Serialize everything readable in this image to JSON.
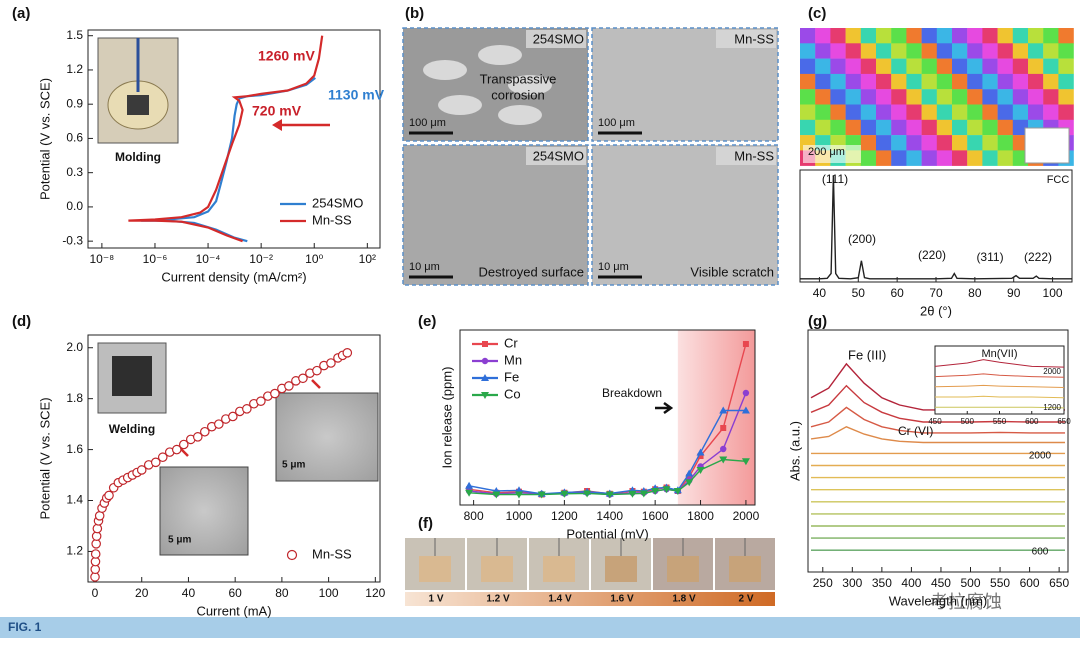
{
  "chart_data": [
    {
      "type": "line",
      "label": "(a)",
      "xlabel": "Current density (mA/cm²)",
      "ylabel": "Potential (V vs. SCE)",
      "xlog": true,
      "xlim": [
        3e-09,
        300
      ],
      "ylim": [
        -0.36,
        1.55
      ],
      "xticks": [
        {
          "value": 1e-08,
          "label": "10⁻⁸"
        },
        {
          "value": 1e-06,
          "label": "10⁻⁶"
        },
        {
          "value": 0.0001,
          "label": "10⁻⁴"
        },
        {
          "value": 0.01,
          "label": "10⁻²"
        },
        {
          "value": 1,
          "label": "10⁰"
        },
        {
          "value": 100,
          "label": "10²"
        }
      ],
      "yticks": [
        -0.3,
        {
          "value": 0,
          "label": "0.0"
        },
        0.3,
        0.6,
        0.9,
        1.2,
        1.5
      ],
      "legend": "lower right",
      "series": [
        {
          "name": "254SMO",
          "color": "#2f7fd0",
          "x": [
            0.003,
            0.001,
            0.0002,
            3e-05,
            3e-06,
            3e-07,
            3e-06,
            3e-05,
            0.0001,
            0.0002,
            0.0003,
            0.0005,
            0.0008,
            0.001,
            0.0012,
            0.0015,
            0.003,
            0.01,
            0.1,
            0.5,
            1.1
          ],
          "values": [
            -0.3,
            -0.27,
            -0.2,
            -0.14,
            -0.12,
            -0.12,
            -0.11,
            -0.09,
            -0.04,
            0.05,
            0.2,
            0.4,
            0.6,
            0.8,
            0.9,
            0.95,
            0.97,
            0.98,
            1.02,
            1.07,
            1.13
          ]
        },
        {
          "name": "Mn-SS",
          "color": "#d42a2a",
          "x": [
            0.002,
            0.0005,
            0.0001,
            1e-05,
            1e-06,
            1e-07,
            1e-06,
            1e-05,
            5e-05,
            0.0001,
            0.0002,
            0.0004,
            0.0008,
            0.0015,
            0.002,
            0.0015,
            0.001,
            0.003,
            0.01,
            0.1,
            0.5,
            1,
            1.5,
            2
          ],
          "values": [
            -0.3,
            -0.25,
            -0.18,
            -0.13,
            -0.12,
            -0.12,
            -0.11,
            -0.09,
            -0.05,
            0,
            0.15,
            0.35,
            0.55,
            0.72,
            0.85,
            0.93,
            0.96,
            0.97,
            0.99,
            1.02,
            1.08,
            1.15,
            1.3,
            1.5
          ]
        }
      ],
      "annotations": [
        {
          "text": "1260 mV",
          "color": "#c8202a"
        },
        {
          "text": "1130 mV",
          "color": "#2f7fd0"
        },
        {
          "text": "720 mV",
          "color": "#c8202a"
        },
        {
          "text": "Molding",
          "color": "#111111"
        }
      ]
    },
    {
      "type": "line",
      "xlabel": "2θ (°)",
      "xlim": [
        35,
        105
      ],
      "ylim": [
        0,
        105
      ],
      "xticks": [
        40,
        50,
        60,
        70,
        80,
        90,
        100
      ],
      "x": [
        35,
        40,
        42,
        43,
        43.6,
        44.2,
        45,
        48,
        50,
        50.8,
        51.6,
        53,
        60,
        70,
        74,
        74.7,
        75.4,
        80,
        89.5,
        90.6,
        91.5,
        95,
        95.8,
        96.5,
        100,
        105
      ],
      "series": [
        {
          "color": "#222222",
          "values": [
            3,
            3,
            3.5,
            8,
            100,
            8,
            3.5,
            3,
            4,
            20,
            4,
            3,
            3,
            3,
            3.5,
            8,
            3.5,
            3,
            3.5,
            6,
            3.5,
            3.5,
            5.5,
            3.5,
            3,
            3
          ]
        }
      ],
      "annotations": [
        {
          "text": "(111)",
          "color": "#111111"
        },
        {
          "text": "(200)",
          "color": "#111111"
        },
        {
          "text": "(220)",
          "color": "#111111"
        },
        {
          "text": "(311)",
          "color": "#111111"
        },
        {
          "text": "(222)",
          "color": "#111111"
        },
        {
          "text": "FCC",
          "color": "#111111"
        }
      ]
    },
    {
      "type": "scatter",
      "label": "(d)",
      "xlabel": "Current (mA)",
      "ylabel": "Potential (V vs. SCE)",
      "xlim": [
        -3,
        122
      ],
      "ylim": [
        1.08,
        2.05
      ],
      "xticks": [
        0,
        20,
        40,
        60,
        80,
        100,
        120
      ],
      "yticks": [
        1.2,
        1.4,
        1.6,
        1.8,
        {
          "value": 2,
          "label": "2.0"
        }
      ],
      "legend": "lower right",
      "series": [
        {
          "name": "Mn-SS",
          "color": "#c0262b",
          "x": [
            0,
            0.1,
            0.2,
            0.3,
            0.5,
            0.7,
            1,
            1.5,
            2,
            3,
            4,
            5,
            6,
            8,
            10,
            12,
            14,
            16,
            18,
            20,
            23,
            26,
            29,
            32,
            35,
            38,
            41,
            44,
            47,
            50,
            53,
            56,
            59,
            62,
            65,
            68,
            71,
            74,
            77,
            80,
            83,
            86,
            89,
            92,
            95,
            98,
            101,
            104,
            106,
            108
          ],
          "values": [
            1.1,
            1.13,
            1.16,
            1.19,
            1.23,
            1.26,
            1.29,
            1.32,
            1.34,
            1.37,
            1.39,
            1.41,
            1.42,
            1.45,
            1.47,
            1.48,
            1.49,
            1.5,
            1.51,
            1.52,
            1.54,
            1.55,
            1.57,
            1.59,
            1.6,
            1.62,
            1.64,
            1.65,
            1.67,
            1.69,
            1.7,
            1.72,
            1.73,
            1.75,
            1.76,
            1.78,
            1.79,
            1.81,
            1.82,
            1.84,
            1.85,
            1.87,
            1.88,
            1.9,
            1.91,
            1.93,
            1.94,
            1.96,
            1.97,
            1.98
          ]
        }
      ],
      "annotations": [
        {
          "text": "Welding",
          "color": "#111111"
        },
        {
          "text": "5 μm",
          "color": "#111111"
        },
        {
          "text": "5 μm",
          "color": "#111111"
        }
      ]
    },
    {
      "type": "line",
      "label": "(e)",
      "xlabel": "Potential (mV)",
      "ylabel": "Ion release (ppm)",
      "xlim": [
        740,
        2040
      ],
      "ylim": [
        -0.3,
        4.7
      ],
      "xticks": [
        800,
        1000,
        1200,
        1400,
        1600,
        1800,
        2000
      ],
      "legend": "upper left",
      "shade_from": 1700,
      "x": [
        780,
        900,
        1000,
        1100,
        1200,
        1300,
        1400,
        1500,
        1550,
        1600,
        1650,
        1700,
        1750,
        1800,
        1900,
        2000
      ],
      "series": [
        {
          "name": "Cr",
          "color": "#e8474f",
          "marker": "square",
          "values": [
            0.15,
            0.05,
            0.08,
            0,
            0.05,
            0.1,
            0.02,
            0.1,
            0.08,
            0.15,
            0.2,
            0.1,
            0.5,
            1.1,
            1.9,
            4.3
          ]
        },
        {
          "name": "Mn",
          "color": "#8b3fd1",
          "marker": "circle",
          "values": [
            0.1,
            0.02,
            0.05,
            0.02,
            0.03,
            0.05,
            0,
            0.05,
            0.05,
            0.1,
            0.15,
            0.1,
            0.4,
            0.8,
            1.3,
            2.9
          ]
        },
        {
          "name": "Fe",
          "color": "#2f6fd9",
          "marker": "triangle",
          "values": [
            0.25,
            0.1,
            0.12,
            0.02,
            0.06,
            0.08,
            0.03,
            0.12,
            0.1,
            0.18,
            0.2,
            0.12,
            0.6,
            1.2,
            2.4,
            2.4
          ]
        },
        {
          "name": "Co",
          "color": "#2aa84a",
          "marker": "down",
          "values": [
            0.05,
            0,
            0,
            0,
            0.02,
            0.03,
            0,
            0.02,
            0.03,
            0.1,
            0.15,
            0.1,
            0.35,
            0.7,
            1,
            0.95
          ]
        }
      ],
      "annotations": [
        {
          "text": "Breakdown",
          "color": "#111111"
        }
      ]
    },
    {
      "type": "line",
      "label": "(g)",
      "xlabel": "Wavelength (nm)",
      "ylabel": "Abs. (a.u.)",
      "xlim": [
        225,
        665
      ],
      "ylim": [
        0,
        10
      ],
      "xticks": [
        250,
        300,
        350,
        400,
        450,
        500,
        550,
        600,
        650
      ],
      "x": [
        230,
        260,
        290,
        320,
        350,
        380,
        420,
        500,
        550,
        600,
        660
      ],
      "series": [
        {
          "color": "#b3243a",
          "values": [
            7.2,
            7.6,
            8.6,
            7.8,
            7.2,
            6.9,
            6.7,
            6.7,
            6.75,
            6.7,
            6.7
          ]
        },
        {
          "color": "#c83a3f",
          "values": [
            6.6,
            6.9,
            7.7,
            7,
            6.6,
            6.35,
            6.2,
            6.2,
            6.22,
            6.2,
            6.2
          ]
        },
        {
          "color": "#d65a45",
          "values": [
            6,
            6.2,
            6.8,
            6.3,
            6,
            5.85,
            5.75,
            5.75,
            5.77,
            5.75,
            5.75
          ]
        },
        {
          "color": "#de8a4a",
          "values": [
            5.5,
            5.6,
            6,
            5.7,
            5.5,
            5.4,
            5.35,
            5.35,
            5.35,
            5.35,
            5.35
          ]
        },
        {
          "color": "#e39c4e",
          "values": [
            4.9,
            4.9,
            4.9,
            4.9,
            4.9,
            4.9,
            4.9,
            4.9,
            4.9,
            4.9,
            4.9
          ]
        },
        {
          "color": "#e4ad52",
          "values": [
            4.4,
            4.4,
            4.4,
            4.4,
            4.4,
            4.4,
            4.4,
            4.4,
            4.4,
            4.4,
            4.4
          ]
        },
        {
          "color": "#e2bb56",
          "values": [
            3.9,
            3.9,
            3.9,
            3.9,
            3.9,
            3.9,
            3.9,
            3.9,
            3.9,
            3.9,
            3.9
          ]
        },
        {
          "color": "#dcc45a",
          "values": [
            3.4,
            3.4,
            3.4,
            3.4,
            3.4,
            3.4,
            3.4,
            3.4,
            3.4,
            3.4,
            3.4
          ]
        },
        {
          "color": "#ccc65c",
          "values": [
            2.9,
            2.9,
            2.9,
            2.9,
            2.9,
            2.9,
            2.9,
            2.9,
            2.9,
            2.9,
            2.9
          ]
        },
        {
          "color": "#b4c25e",
          "values": [
            2.4,
            2.4,
            2.4,
            2.4,
            2.4,
            2.4,
            2.4,
            2.4,
            2.4,
            2.4,
            2.4
          ]
        },
        {
          "color": "#98ba60",
          "values": [
            1.9,
            1.9,
            1.9,
            1.9,
            1.9,
            1.9,
            1.9,
            1.9,
            1.9,
            1.9,
            1.9
          ]
        },
        {
          "color": "#7cb062",
          "values": [
            1.4,
            1.4,
            1.4,
            1.4,
            1.4,
            1.4,
            1.4,
            1.4,
            1.4,
            1.4,
            1.4
          ]
        },
        {
          "color": "#5fa463",
          "values": [
            0.9,
            0.9,
            0.9,
            0.9,
            0.9,
            0.9,
            0.9,
            0.9,
            0.9,
            0.9,
            0.9
          ]
        }
      ],
      "annotations": [
        {
          "text": "Fe (III)",
          "color": "#111111"
        },
        {
          "text": "Cr (VI)",
          "color": "#111111"
        },
        {
          "text": "2000",
          "color": "#111111"
        },
        {
          "text": "600",
          "color": "#111111"
        }
      ],
      "inset": {
        "title": "Mn(VII)",
        "xlim": [
          450,
          650
        ],
        "ylim": [
          0,
          10
        ],
        "xticks": [
          450,
          500,
          550,
          600,
          650
        ],
        "labels": [
          "2000",
          "1200"
        ],
        "x": [
          450,
          500,
          525,
          550,
          600,
          650
        ],
        "series": [
          {
            "color": "#b3243a",
            "values": [
              7,
              7.5,
              8,
              7.6,
              7,
              6.9
            ]
          },
          {
            "color": "#d65a45",
            "values": [
              5.5,
              5.7,
              5.9,
              5.7,
              5.5,
              5.4
            ]
          },
          {
            "color": "#e39c4e",
            "values": [
              4,
              4.1,
              4.2,
              4.1,
              4,
              3.9
            ]
          },
          {
            "color": "#e2bb56",
            "values": [
              2.5,
              2.5,
              2.6,
              2.5,
              2.5,
              2.4
            ]
          },
          {
            "color": "#ccc65c",
            "values": [
              1,
              1,
              1,
              1,
              1,
              0.9
            ]
          }
        ]
      }
    }
  ],
  "panel_b": {
    "label": "(b)",
    "tiles": [
      {
        "name": "254SMO",
        "scale": "100 μm",
        "caption": [
          "Transpassive",
          "corrosion"
        ]
      },
      {
        "name": "Mn-SS",
        "scale": "100 μm"
      },
      {
        "name": "254SMO",
        "scale": "10 μm",
        "caption": [
          "Destroyed surface"
        ]
      },
      {
        "name": "Mn-SS",
        "scale": "10 μm",
        "caption": [
          "Visible scratch"
        ]
      }
    ]
  },
  "panel_c": {
    "label": "(c)",
    "scale": "200 μm"
  },
  "panel_f": {
    "label": "(f)",
    "steps": [
      "1 V",
      "1.2 V",
      "1.4 V",
      "1.6 V",
      "1.8 V",
      "2 V"
    ]
  },
  "caption": "FIG. 1",
  "watermark": "考拉腐蚀"
}
